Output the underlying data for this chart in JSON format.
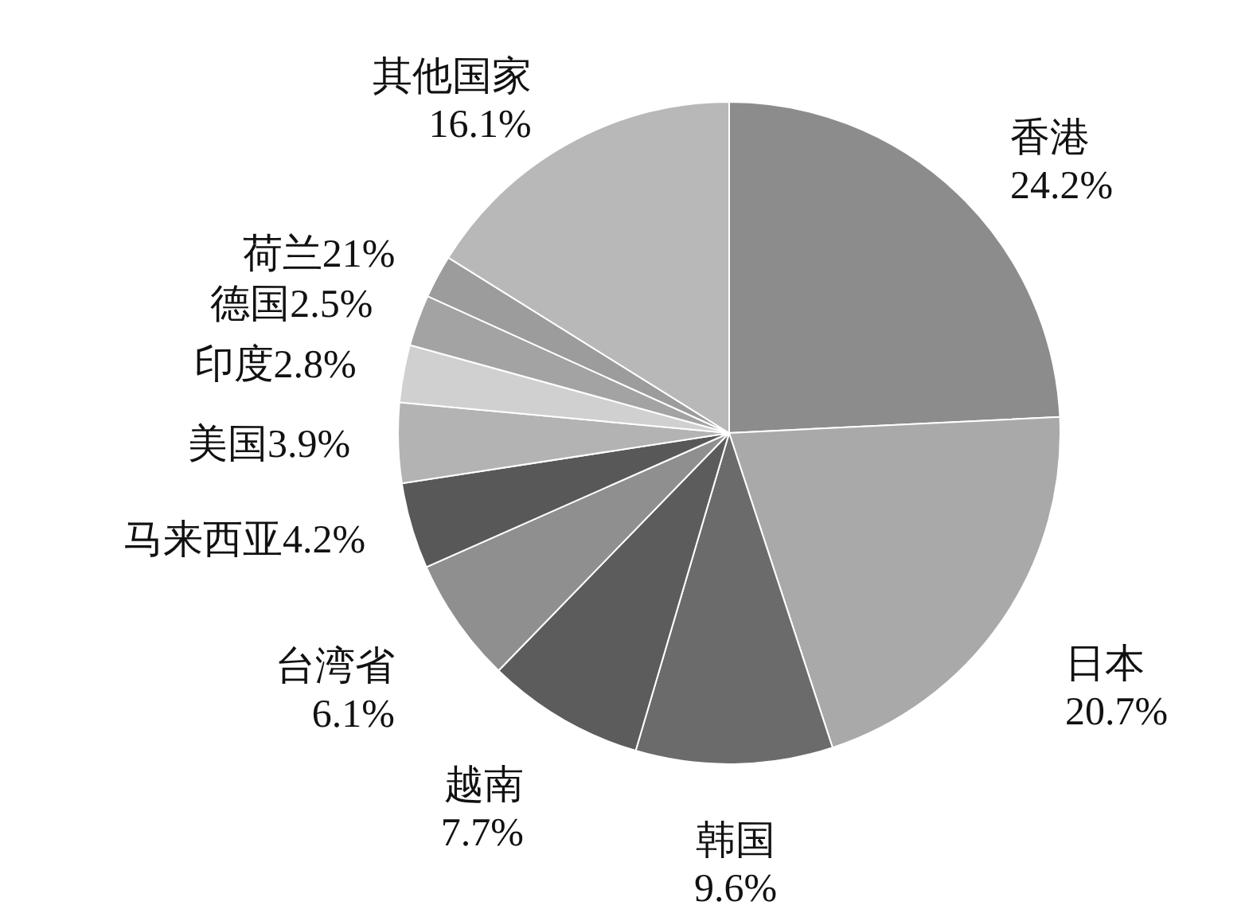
{
  "chart_data": {
    "type": "pie",
    "categories": [
      "香港",
      "日本",
      "韩国",
      "越南",
      "台湾省",
      "马来西亚",
      "美国",
      "印度",
      "德国",
      "荷兰21%",
      "其他国家"
    ],
    "values": [
      24.2,
      20.7,
      9.6,
      7.7,
      6.1,
      4.2,
      3.9,
      2.8,
      2.5,
      2.1,
      16.1
    ],
    "value_labels": [
      "24.2%",
      "20.7%",
      "9.6%",
      "7.7%",
      "6.1%",
      "4.2%",
      "3.9%",
      "2.8%",
      "2.5%",
      null,
      "16.1%"
    ],
    "colors": [
      "#8c8c8c",
      "#a9a9a9",
      "#6b6b6b",
      "#5c5c5c",
      "#8f8f8f",
      "#585858",
      "#b3b3b3",
      "#d0d0d0",
      "#a3a3a3",
      "#9c9c9c",
      "#b8b8b8"
    ]
  }
}
